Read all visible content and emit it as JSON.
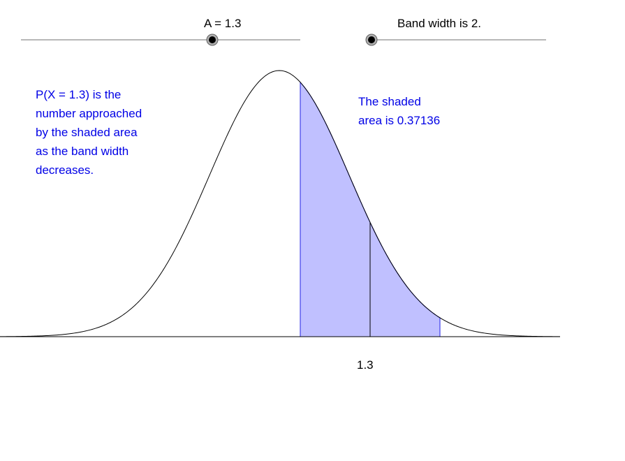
{
  "sliders": {
    "a": {
      "label": "A = 1.3",
      "value": 1.3
    },
    "band_width": {
      "label": "Band width is 2.",
      "value": 2
    }
  },
  "notes": {
    "left": {
      "lines": [
        "P(X = 1.3) is the",
        "number approached",
        "by the shaded area",
        "as the band width",
        "decreases."
      ]
    },
    "right": {
      "lines": [
        "The shaded",
        "area is 0.37136"
      ]
    }
  },
  "axis": {
    "tick_label": "1.3"
  },
  "curve": {
    "mean": 0,
    "sd": 1,
    "band_from": 0.3,
    "band_to": 2.3,
    "marker_x": 1.3
  },
  "colors": {
    "curve": "#000000",
    "shade_fill": "#c0c0ff",
    "shade_stroke": "#2020e6",
    "text_blue": "#0000e6",
    "slider_track": "#a0a0a0",
    "axis": "#000000"
  }
}
